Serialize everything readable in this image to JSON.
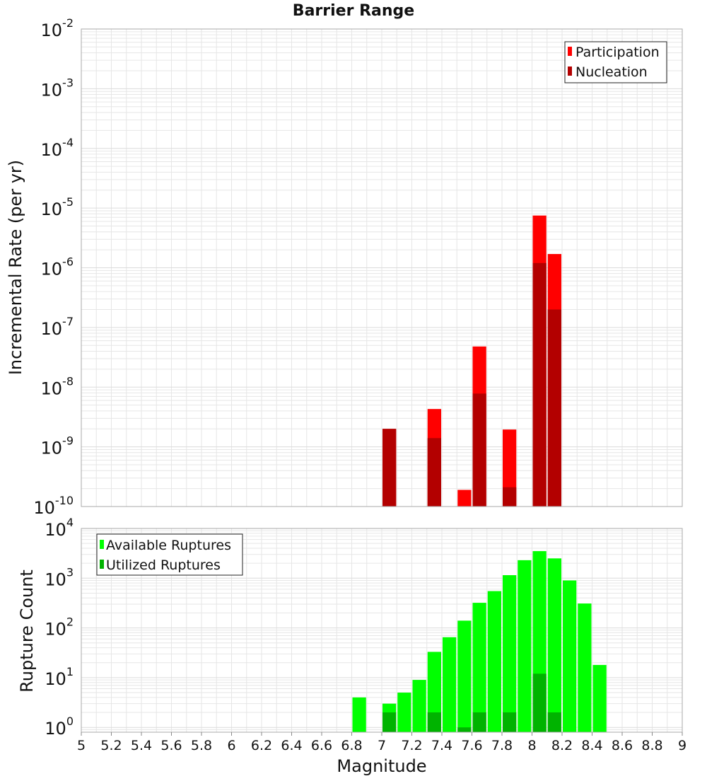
{
  "colors": {
    "participation": "#ff0000",
    "nucleation": "#b30000",
    "available": "#00ff00",
    "utilized": "#00b300",
    "plot_background": "#ffffff",
    "grid": "#e6e6e6",
    "frame": "#aaaaaa"
  },
  "chart_data": [
    {
      "type": "bar",
      "title": "Barrier Range",
      "xlabel": "",
      "ylabel": "Incremental Rate (per yr)",
      "yscale": "log",
      "ylim": [
        1e-10,
        0.01
      ],
      "xlim": [
        5,
        9
      ],
      "bar_width": 0.1,
      "grid": true,
      "legend_position": "top-right",
      "series": [
        {
          "name": "Participation",
          "x": [
            7.05,
            7.35,
            7.55,
            7.65,
            7.85,
            8.05,
            8.15
          ],
          "values": [
            2e-09,
            4.3e-09,
            1.9e-10,
            4.8e-08,
            1.95e-09,
            7.5e-06,
            1.7e-06
          ]
        },
        {
          "name": "Nucleation",
          "x": [
            7.05,
            7.35,
            7.65,
            7.85,
            8.05,
            8.15
          ],
          "values": [
            2e-09,
            1.4e-09,
            7.8e-09,
            2.1e-10,
            1.2e-06,
            2e-07
          ]
        }
      ]
    },
    {
      "type": "bar",
      "title": "",
      "xlabel": "Magnitude",
      "ylabel": "Rupture Count",
      "yscale": "log",
      "ylim": [
        0.8,
        10000
      ],
      "xlim": [
        5,
        9
      ],
      "bar_width": 0.1,
      "grid": true,
      "legend_position": "top-left",
      "x_ticks": [
        "5",
        "5.2",
        "5.4",
        "5.6",
        "5.8",
        "6",
        "6.2",
        "6.4",
        "6.6",
        "6.8",
        "7",
        "7.2",
        "7.4",
        "7.6",
        "7.8",
        "8",
        "8.2",
        "8.4",
        "8.6",
        "8.8",
        "9"
      ],
      "series": [
        {
          "name": "Available Ruptures",
          "x": [
            6.85,
            7.05,
            7.15,
            7.25,
            7.35,
            7.45,
            7.55,
            7.65,
            7.75,
            7.85,
            7.95,
            8.05,
            8.15,
            8.25,
            8.35,
            8.45
          ],
          "values": [
            4,
            3,
            5,
            9,
            33,
            65,
            140,
            320,
            550,
            1150,
            2300,
            3500,
            2500,
            900,
            310,
            18
          ]
        },
        {
          "name": "Utilized Ruptures",
          "x": [
            7.05,
            7.35,
            7.55,
            7.65,
            7.85,
            8.05,
            8.15
          ],
          "values": [
            2,
            2,
            1,
            2,
            2,
            12,
            2
          ]
        }
      ]
    }
  ]
}
